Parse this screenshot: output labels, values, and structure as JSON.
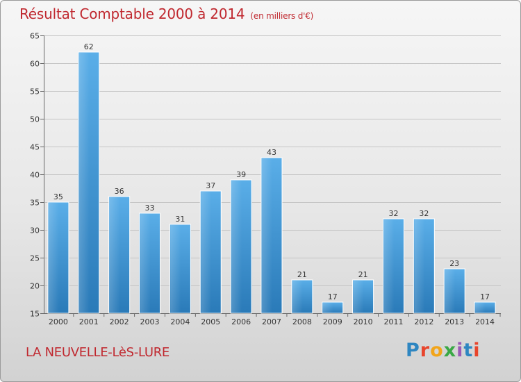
{
  "header": {
    "title": "Résultat Comptable 2000 à 2014",
    "unit": "(en milliers d'€)"
  },
  "footer": {
    "commune": "LA NEUVELLE-LèS-LURE",
    "logo": "Proxiti",
    "logo_colors": [
      "#2e86c1",
      "#e8452c",
      "#f2a51a",
      "#3aa845",
      "#9b59b6",
      "#2e86c1",
      "#e8452c"
    ]
  },
  "chart_data": {
    "type": "bar",
    "title": "Résultat Comptable 2000 à 2014",
    "subtitle": "(en milliers d'€)",
    "xlabel": "",
    "ylabel": "",
    "categories": [
      "2000",
      "2001",
      "2002",
      "2003",
      "2004",
      "2005",
      "2006",
      "2007",
      "2008",
      "2009",
      "2010",
      "2011",
      "2012",
      "2013",
      "2014"
    ],
    "values": [
      35,
      62,
      36,
      33,
      31,
      37,
      39,
      43,
      21,
      17,
      21,
      32,
      32,
      23,
      17
    ],
    "ylim": [
      15,
      65
    ],
    "yticks": [
      15,
      20,
      25,
      30,
      35,
      40,
      45,
      50,
      55,
      60,
      65
    ],
    "grid": true,
    "legend": "none",
    "bar_color_top": "#5aaee8",
    "bar_color_bottom": "#2a7ab8"
  }
}
